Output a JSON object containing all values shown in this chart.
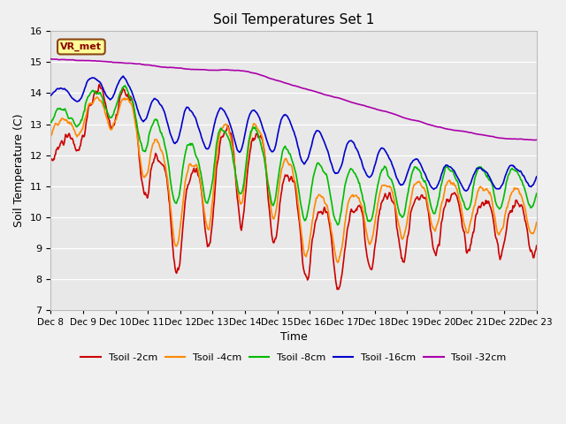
{
  "title": "Soil Temperatures Set 1",
  "xlabel": "Time",
  "ylabel": "Soil Temperature (C)",
  "ylim": [
    7.0,
    16.0
  ],
  "yticks": [
    7.0,
    8.0,
    9.0,
    10.0,
    11.0,
    12.0,
    13.0,
    14.0,
    15.0,
    16.0
  ],
  "x_labels": [
    "Dec 8",
    "Dec 9",
    "Dec 10",
    "Dec 11",
    "Dec 12",
    "Dec 13",
    "Dec 14",
    "Dec 15",
    "Dec 16",
    "Dec 17",
    "Dec 18",
    "Dec 19",
    "Dec 20",
    "Dec 21",
    "Dec 22",
    "Dec 23"
  ],
  "colors": {
    "Tsoil -2cm": "#cc0000",
    "Tsoil -4cm": "#ff8800",
    "Tsoil -8cm": "#00bb00",
    "Tsoil -16cm": "#0000cc",
    "Tsoil -32cm": "#aa00aa"
  },
  "plot_bg": "#e8e8e8",
  "fig_bg": "#f0f0f0",
  "legend_label": "VR_met",
  "legend_box_color": "#ffff99",
  "legend_box_border": "#8b4513"
}
